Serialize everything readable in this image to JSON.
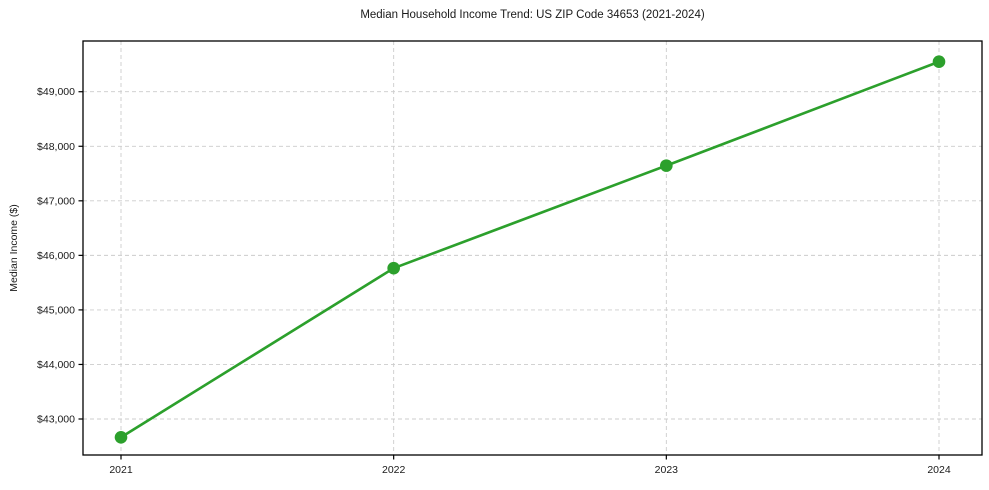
{
  "page": {
    "background": "#ffffff"
  },
  "chart_data": {
    "type": "line",
    "title": "Median Household Income Trend: US ZIP Code 34653 (2021-2024)",
    "xlabel": "",
    "ylabel": "Median Income ($)",
    "categories": [
      2021,
      2022,
      2023,
      2024
    ],
    "xtick_labels": [
      "2021",
      "2022",
      "2023",
      "2024"
    ],
    "series": [
      {
        "name": "Median Household Income",
        "values": [
          42665,
          45765,
          47645,
          49550
        ],
        "color": "#2ca02c",
        "marker": "circle",
        "line_width": 2.6,
        "marker_radius": 6.3
      }
    ],
    "ylim": [
      42340,
      49930
    ],
    "yticks": [
      43000,
      44000,
      45000,
      46000,
      47000,
      48000,
      49000
    ],
    "ytick_labels": [
      "$43,000",
      "$44,000",
      "$45,000",
      "$46,000",
      "$47,000",
      "$48,000",
      "$49,000"
    ],
    "grid": "dashed-both-axes",
    "legend": "none",
    "colors": {
      "grid": "#cccccc",
      "frame": "#000000",
      "tick": "#000000",
      "text": "#1a1a1a",
      "background": "#ffffff"
    }
  }
}
